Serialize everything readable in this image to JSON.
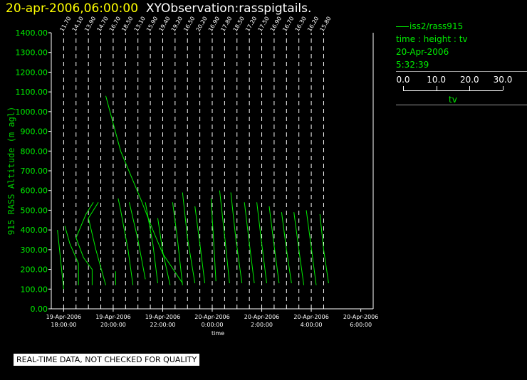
{
  "header": {
    "datetime": "20-apr-2006,06:00:00",
    "observation": "XYObservation:rasspigtails."
  },
  "legend": {
    "series": "iss2/rass915",
    "line2": "time : height : tv",
    "line3": "20-Apr-2006",
    "line4": "5:32:39",
    "colorbar_ticks": [
      "0.0",
      "10.0",
      "20.0",
      "30.0"
    ],
    "colorbar_title": "tv"
  },
  "notice": "REAL-TIME DATA, NOT CHECKED FOR QUALITY",
  "colors": {
    "series": "#00ee00",
    "axis": "#ffffff",
    "ylabel": "#00cc00",
    "title": "#ffff00"
  },
  "chart_data": {
    "type": "line",
    "ylabel": "915 RASS Altitude (m agl)",
    "xlabel": "time",
    "ylim": [
      0,
      1400
    ],
    "xlim_hours": [
      17.5,
      30.5
    ],
    "y_ticks": [
      "0.00",
      "100.00",
      "200.00",
      "300.00",
      "400.00",
      "500.00",
      "600.00",
      "700.00",
      "800.00",
      "900.00",
      "1000.00",
      "1100.00",
      "1200.00",
      "1300.00",
      "1400.00"
    ],
    "x_ticks": [
      {
        "h": 18,
        "date": "19-Apr-2006",
        "time": "18:00:00"
      },
      {
        "h": 20,
        "date": "19-Apr-2006",
        "time": "20:00:00"
      },
      {
        "h": 22,
        "date": "19-Apr-2006",
        "time": "22:00:00"
      },
      {
        "h": 24,
        "date": "20-Apr-2006",
        "time": "0:00:00"
      },
      {
        "h": 26,
        "date": "20-Apr-2006",
        "time": "2:00:00"
      },
      {
        "h": 28,
        "date": "20-Apr-2006",
        "time": "4:00:00"
      },
      {
        "h": 30,
        "date": "20-Apr-2006",
        "time": "6:00:00"
      }
    ],
    "profiles": [
      {
        "h": 18.0,
        "label": "11.70",
        "pts": [
          [
            0,
            100
          ],
          [
            -0.25,
            400
          ]
        ]
      },
      {
        "h": 18.5,
        "label": "14.10",
        "pts": [
          [
            0.1,
            120
          ],
          [
            0.1,
            230
          ],
          [
            -0.25,
            330
          ],
          [
            -0.45,
            420
          ]
        ]
      },
      {
        "h": 19.0,
        "label": "13.90",
        "pts": [
          [
            0.15,
            120
          ],
          [
            0.15,
            200
          ],
          [
            -0.2,
            260
          ],
          [
            -0.5,
            360
          ],
          [
            -0.1,
            480
          ],
          [
            0.2,
            540
          ]
        ]
      },
      {
        "h": 19.5,
        "label": "14.70",
        "pts": [
          [
            0.2,
            120
          ],
          [
            -0.2,
            300
          ],
          [
            -0.5,
            460
          ],
          [
            -0.1,
            540
          ]
        ]
      },
      {
        "h": 20.0,
        "label": "16.70",
        "pts": [
          [
            0.1,
            120
          ],
          [
            0.1,
            190
          ]
        ]
      },
      {
        "h": 20.5,
        "label": "18.50",
        "pts": [
          [
            0.3,
            120
          ],
          [
            0.1,
            300
          ],
          [
            -0.2,
            500
          ],
          [
            -0.3,
            560
          ]
        ]
      },
      {
        "h": 21.0,
        "label": "13.10",
        "pts": [
          [
            0.3,
            150
          ],
          [
            0.0,
            350
          ],
          [
            -0.35,
            540
          ]
        ]
      },
      {
        "h": 21.5,
        "label": "15.90",
        "pts": [
          [
            0.3,
            130
          ],
          [
            0.1,
            330
          ],
          [
            -0.2,
            540
          ]
        ]
      },
      {
        "h": 22.0,
        "label": "19.40",
        "pts": [
          [
            0.3,
            120
          ],
          [
            0.0,
            290
          ],
          [
            -0.2,
            460
          ]
        ]
      },
      {
        "h": 22.5,
        "label": "19.20",
        "pts": [
          [
            0.3,
            120
          ],
          [
            0.1,
            350
          ],
          [
            -0.1,
            540
          ]
        ]
      },
      {
        "h": 23.0,
        "label": "16.50",
        "pts": [
          [
            0.3,
            130
          ],
          [
            0.0,
            360
          ],
          [
            -0.2,
            590
          ]
        ]
      },
      {
        "h": 23.5,
        "label": "20.20",
        "pts": [
          [
            0.2,
            130
          ],
          [
            0.0,
            330
          ],
          [
            -0.2,
            520
          ]
        ]
      },
      {
        "h": 24.0,
        "label": "16.90",
        "pts": [
          [
            0.15,
            140
          ],
          [
            0.05,
            360
          ],
          [
            -0.05,
            560
          ]
        ]
      },
      {
        "h": 24.5,
        "label": "17.80",
        "pts": [
          [
            0.2,
            130
          ],
          [
            0.0,
            370
          ],
          [
            -0.2,
            600
          ]
        ]
      },
      {
        "h": 25.0,
        "label": "18.50",
        "pts": [
          [
            0.2,
            130
          ],
          [
            -0.05,
            360
          ],
          [
            -0.25,
            590
          ]
        ]
      },
      {
        "h": 25.5,
        "label": "17.20",
        "pts": [
          [
            0.2,
            130
          ],
          [
            0.0,
            330
          ],
          [
            -0.2,
            540
          ]
        ]
      },
      {
        "h": 26.0,
        "label": "17.50",
        "pts": [
          [
            0.2,
            130
          ],
          [
            0.0,
            330
          ],
          [
            -0.2,
            540
          ]
        ]
      },
      {
        "h": 26.5,
        "label": "16.90",
        "pts": [
          [
            0.2,
            130
          ],
          [
            0.0,
            320
          ],
          [
            -0.2,
            520
          ]
        ]
      },
      {
        "h": 27.0,
        "label": "16.70",
        "pts": [
          [
            0.2,
            130
          ],
          [
            0.0,
            300
          ],
          [
            -0.2,
            490
          ]
        ]
      },
      {
        "h": 27.5,
        "label": "16.30",
        "pts": [
          [
            0.2,
            120
          ],
          [
            0.0,
            300
          ],
          [
            -0.2,
            490
          ]
        ]
      },
      {
        "h": 28.0,
        "label": "16.20",
        "pts": [
          [
            0.2,
            120
          ],
          [
            0.0,
            310
          ],
          [
            -0.2,
            500
          ]
        ]
      },
      {
        "h": 28.5,
        "label": "15.80",
        "pts": [
          [
            0.2,
            130
          ],
          [
            0.0,
            300
          ],
          [
            -0.15,
            480
          ]
        ]
      }
    ],
    "sweep": [
      [
        19.7,
        1080
      ],
      [
        20.3,
        800
      ],
      [
        21.1,
        560
      ],
      [
        21.6,
        400
      ],
      [
        22.0,
        280
      ],
      [
        22.8,
        130
      ]
    ]
  }
}
